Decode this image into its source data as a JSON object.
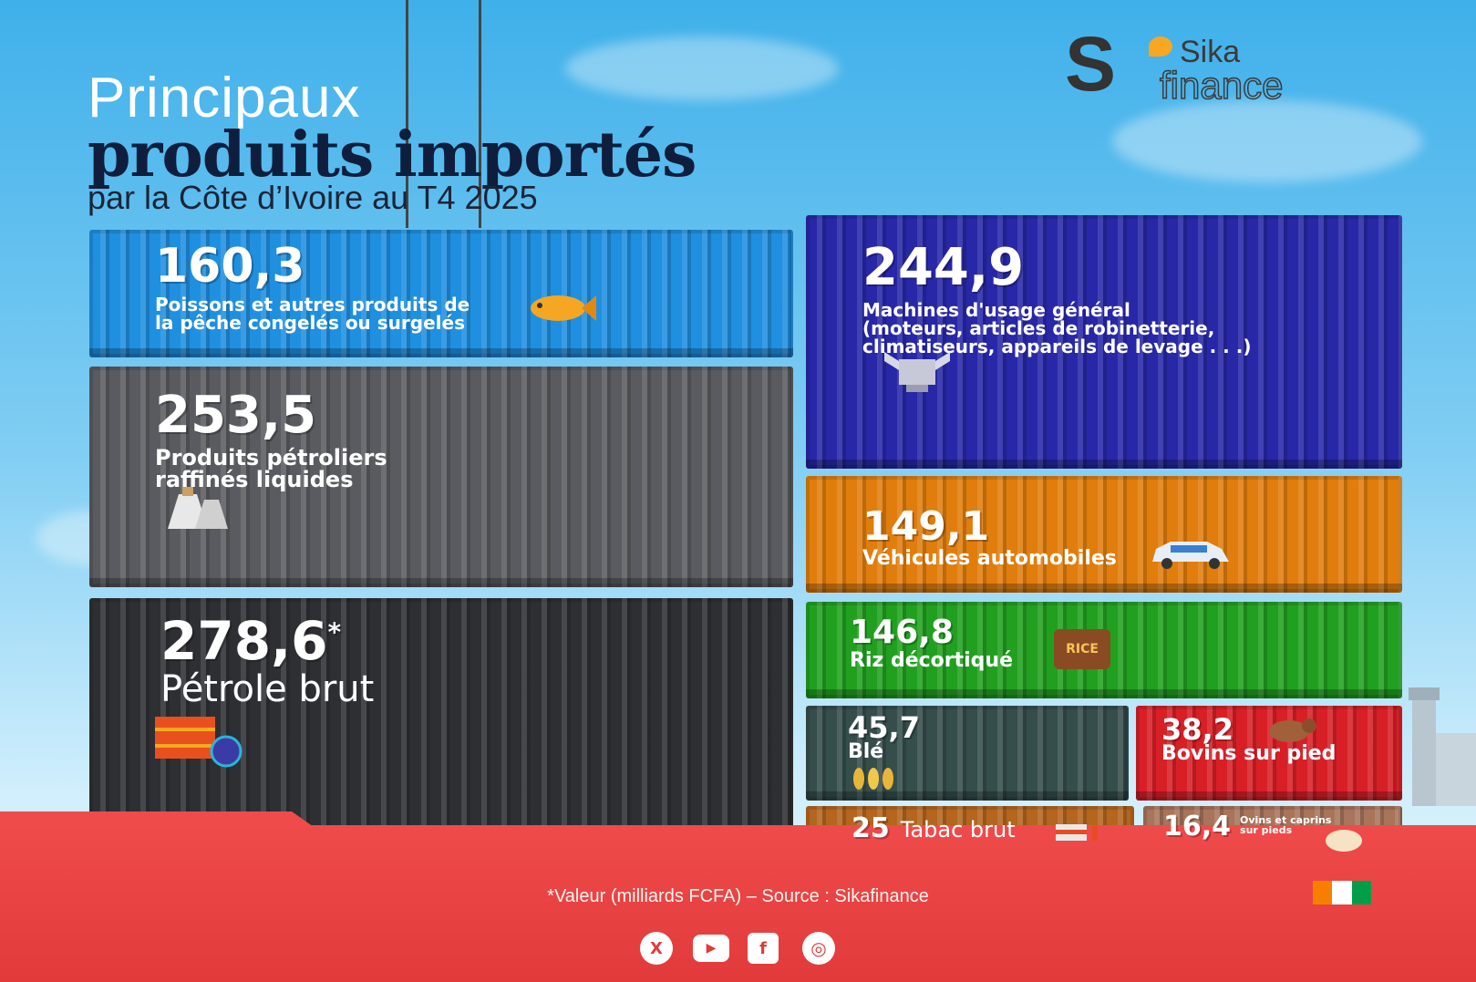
{
  "title": {
    "line1": "Principaux",
    "line2": "produits importés",
    "line3": "par la Côte d’Ivoire au T4 2025"
  },
  "logo": {
    "s": "S",
    "sika": "Sika",
    "finance": "finance"
  },
  "items": [
    {
      "id": "poissons",
      "value": "160,3",
      "label_lines": [
        "Poissons et autres produits de",
        "la pêche congelés ou surgelés"
      ],
      "color": "#1f8fe0",
      "icon": "fish-icon"
    },
    {
      "id": "petroliers",
      "value": "253,5",
      "label_lines": [
        "Produits pétroliers",
        "raffinés liquides"
      ],
      "color": "#5a5b60",
      "icon": "refinery-icon"
    },
    {
      "id": "petrole",
      "value": "278,6",
      "value_mark": "*",
      "label_lines": [
        "Pétrole brut"
      ],
      "color": "#2e2f33",
      "icon": "oil-barrel-icon"
    },
    {
      "id": "machines",
      "value": "244,9",
      "label_lines": [
        "Machines d'usage général",
        "(moteurs, articles de robinetterie,",
        "climatiseurs, appareils de levage . . .)"
      ],
      "color": "#2727a8",
      "icon": "engine-icon"
    },
    {
      "id": "vehicules",
      "value": "149,1",
      "label_lines": [
        "Véhicules automobiles"
      ],
      "color": "#e07d0c",
      "icon": "car-icon"
    },
    {
      "id": "riz",
      "value": "146,8",
      "label_lines": [
        "Riz décortiqué"
      ],
      "color": "#21a01f",
      "icon": "rice-sack-icon",
      "icon_text": "RICE"
    },
    {
      "id": "ble",
      "value": "45,7",
      "label_lines": [
        "Blé"
      ],
      "color": "#354d4b",
      "icon": "wheat-icon"
    },
    {
      "id": "bovins",
      "value": "38,2",
      "label_lines": [
        "Bovins sur pied"
      ],
      "color": "#d81f26",
      "icon": "cow-icon"
    },
    {
      "id": "tabac",
      "value": "25",
      "label_lines": [
        "Tabac brut"
      ],
      "color": "#b4651e",
      "icon": "cigarette-icon"
    },
    {
      "id": "ovins",
      "value": "16,4",
      "label_lines": [
        "Ovins et caprins",
        "sur pieds"
      ],
      "color": "#a8745a",
      "icon": "sheep-icon"
    }
  ],
  "footer": {
    "source": "*Valeur (milliards FCFA) – Source : Sikafinance",
    "flag_colors": [
      "#f77f00",
      "#ffffff",
      "#009e49"
    ],
    "social": [
      {
        "name": "x-icon",
        "glyph": "X"
      },
      {
        "name": "youtube-icon",
        "glyph": "▶"
      },
      {
        "name": "facebook-icon",
        "glyph": "f"
      },
      {
        "name": "instagram-icon",
        "glyph": "◎"
      }
    ]
  }
}
